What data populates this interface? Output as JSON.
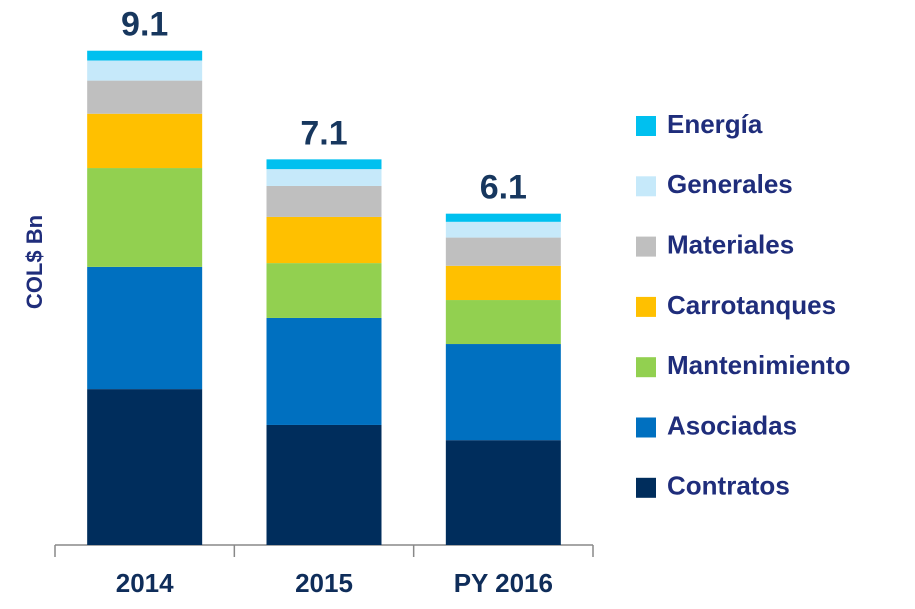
{
  "chart_data": {
    "type": "stacked_bar",
    "y_label": "COL$ Bn",
    "categories": [
      "2014",
      "2015",
      "PY 2016"
    ],
    "ylim": [
      0,
      9.5
    ],
    "totals": [
      9.1,
      7.1,
      6.1
    ],
    "series": [
      {
        "name": "Contratos",
        "color": "#002D5C",
        "values": [
          2.87,
          2.21,
          1.93
        ]
      },
      {
        "name": "Asociadas",
        "color": "#0070C0",
        "values": [
          2.25,
          1.97,
          1.77
        ]
      },
      {
        "name": "Mantenimiento",
        "color": "#92D050",
        "values": [
          1.82,
          1.01,
          0.81
        ]
      },
      {
        "name": "Carrotanques",
        "color": "#FFC000",
        "values": [
          1.0,
          0.85,
          0.63
        ]
      },
      {
        "name": "Materiales",
        "color": "#BFBFBF",
        "values": [
          0.61,
          0.57,
          0.52
        ]
      },
      {
        "name": "Generales",
        "color": "#C6E9FA",
        "values": [
          0.37,
          0.31,
          0.29
        ]
      },
      {
        "name": "Energía",
        "color": "#00C0EF",
        "values": [
          0.18,
          0.18,
          0.15
        ]
      }
    ]
  }
}
